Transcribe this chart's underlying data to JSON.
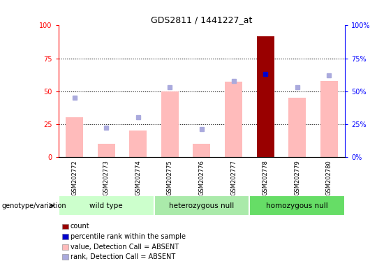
{
  "title": "GDS2811 / 1441227_at",
  "samples": [
    "GSM202772",
    "GSM202773",
    "GSM202774",
    "GSM202775",
    "GSM202776",
    "GSM202777",
    "GSM202778",
    "GSM202779",
    "GSM202780"
  ],
  "groups": [
    {
      "name": "wild type",
      "indices": [
        0,
        1,
        2
      ],
      "color": "#ccffcc"
    },
    {
      "name": "heterozygous null",
      "indices": [
        3,
        4,
        5
      ],
      "color": "#aaeaaa"
    },
    {
      "name": "homozygous null",
      "indices": [
        6,
        7,
        8
      ],
      "color": "#66dd66"
    }
  ],
  "value_absent": [
    30,
    10,
    20,
    50,
    10,
    57,
    0,
    45,
    58
  ],
  "rank_absent": [
    45,
    22,
    30,
    53,
    21,
    58,
    0,
    53,
    62
  ],
  "count": [
    0,
    0,
    0,
    0,
    0,
    0,
    92,
    0,
    0
  ],
  "percentile_rank": [
    0,
    0,
    0,
    0,
    0,
    0,
    63,
    0,
    0
  ],
  "yticks": [
    0,
    25,
    50,
    75,
    100
  ],
  "bar_color_absent": "#ffbbbb",
  "bar_color_count": "#990000",
  "dot_color_rank_absent": "#aaaadd",
  "dot_color_percentile": "#0000cc",
  "legend_items": [
    {
      "label": "count",
      "color": "#990000"
    },
    {
      "label": "percentile rank within the sample",
      "color": "#0000cc"
    },
    {
      "label": "value, Detection Call = ABSENT",
      "color": "#ffbbbb"
    },
    {
      "label": "rank, Detection Call = ABSENT",
      "color": "#aaaadd"
    }
  ],
  "arrow_label": "genotype/variation",
  "group_label_color": "#d0d0d0",
  "sample_bg_color": "#cccccc"
}
